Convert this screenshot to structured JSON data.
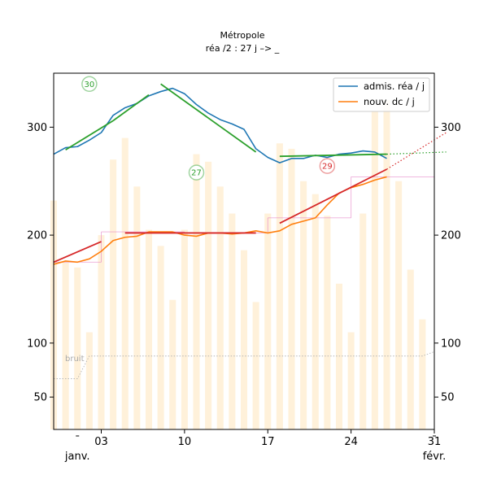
{
  "chart_data": {
    "type": "line",
    "title": "Métropole",
    "subtitle": "réa /2 : 27 j –> _",
    "x_start": "2020-12-30",
    "x_end": "2021-01-31",
    "y_range": [
      20,
      350
    ],
    "y_ticks": [
      50,
      100,
      200,
      300
    ],
    "y_ticks_right": true,
    "x_tick_labels": [
      {
        "date": "2021-01-03",
        "label": "03"
      },
      {
        "date": "2021-01-10",
        "label": "10"
      },
      {
        "date": "2021-01-17",
        "label": "17"
      },
      {
        "date": "2021-01-24",
        "label": "24"
      },
      {
        "date": "2021-01-31",
        "label": "31"
      }
    ],
    "x_minor_ticks": [
      "2021-01-01",
      "2021-01-31"
    ],
    "month_labels": [
      {
        "date": "2021-01-01",
        "label": "janv."
      },
      {
        "date": "2021-02-01",
        "label": "févr."
      }
    ],
    "legend_position": "top-right",
    "colors": {
      "admissions": "#1f77b4",
      "deaths": "#ff7f0e",
      "fit_green": "#2ca02c",
      "fit_red": "#d62728",
      "bars": "#fff1da",
      "steps": "#e377c2",
      "noise": "#b4b4b4"
    },
    "series": [
      {
        "name": "admis. réa / j",
        "x": [
          "2020-12-30",
          "2020-12-31",
          "2021-01-01",
          "2021-01-02",
          "2021-01-03",
          "2021-01-04",
          "2021-01-05",
          "2021-01-06",
          "2021-01-07",
          "2021-01-08",
          "2021-01-09",
          "2021-01-10",
          "2021-01-11",
          "2021-01-12",
          "2021-01-13",
          "2021-01-14",
          "2021-01-15",
          "2021-01-16",
          "2021-01-17",
          "2021-01-18",
          "2021-01-19",
          "2021-01-20",
          "2021-01-21",
          "2021-01-22",
          "2021-01-23",
          "2021-01-24",
          "2021-01-25",
          "2021-01-26",
          "2021-01-27"
        ],
        "y": [
          275,
          281,
          282,
          288,
          295,
          311,
          318,
          322,
          329,
          333,
          336,
          331,
          321,
          313,
          307,
          303,
          298,
          280,
          272,
          267,
          271,
          271,
          274,
          272,
          275,
          276,
          278,
          277,
          271
        ]
      },
      {
        "name": "nouv. dc / j",
        "x": [
          "2020-12-30",
          "2020-12-31",
          "2021-01-01",
          "2021-01-02",
          "2021-01-03",
          "2021-01-04",
          "2021-01-05",
          "2021-01-06",
          "2021-01-07",
          "2021-01-08",
          "2021-01-09",
          "2021-01-10",
          "2021-01-11",
          "2021-01-12",
          "2021-01-13",
          "2021-01-14",
          "2021-01-15",
          "2021-01-16",
          "2021-01-17",
          "2021-01-18",
          "2021-01-19",
          "2021-01-20",
          "2021-01-21",
          "2021-01-22",
          "2021-01-23",
          "2021-01-24",
          "2021-01-25",
          "2021-01-26",
          "2021-01-27"
        ],
        "y": [
          173,
          176,
          175,
          178,
          185,
          195,
          198,
          199,
          203,
          203,
          203,
          200,
          199,
          202,
          202,
          201,
          202,
          204,
          202,
          204,
          210,
          213,
          216,
          228,
          239,
          244,
          247,
          251,
          254
        ]
      }
    ],
    "fit_lines": [
      {
        "color": "green",
        "style": "solid",
        "points": [
          [
            "2020-12-31",
            279
          ],
          [
            "2021-01-04",
            306
          ]
        ]
      },
      {
        "color": "green",
        "style": "solid",
        "points": [
          [
            "2021-01-04",
            306
          ],
          [
            "2021-01-07",
            330
          ]
        ]
      },
      {
        "color": "green",
        "style": "solid",
        "points": [
          [
            "2021-01-08",
            340
          ],
          [
            "2021-01-16",
            277
          ]
        ]
      },
      {
        "color": "green",
        "style": "solid",
        "points": [
          [
            "2021-01-18",
            273
          ],
          [
            "2021-01-27",
            275
          ]
        ]
      },
      {
        "color": "green",
        "style": "dotted",
        "points": [
          [
            "2021-01-27",
            275
          ],
          [
            "2021-02-01",
            277
          ]
        ]
      },
      {
        "color": "red",
        "style": "solid",
        "points": [
          [
            "2020-12-30",
            175
          ],
          [
            "2021-01-03",
            194
          ]
        ]
      },
      {
        "color": "red",
        "style": "solid",
        "points": [
          [
            "2021-01-05",
            202
          ],
          [
            "2021-01-16",
            202
          ]
        ]
      },
      {
        "color": "red",
        "style": "solid",
        "points": [
          [
            "2021-01-18",
            211
          ],
          [
            "2021-01-27",
            261
          ]
        ]
      },
      {
        "color": "red",
        "style": "dotted",
        "points": [
          [
            "2021-01-27",
            261
          ],
          [
            "2021-02-01",
            295
          ]
        ]
      }
    ],
    "bubbles": [
      {
        "date": "2021-01-02",
        "y": 340,
        "label": "30",
        "color": "#2ca02c"
      },
      {
        "date": "2021-01-11",
        "y": 258,
        "label": "27",
        "color": "#2ca02c"
      },
      {
        "date": "2021-01-22",
        "y": 264,
        "label": "29",
        "color": "#d62728"
      }
    ],
    "weekly_steps": [
      {
        "from": "2020-12-30",
        "to": "2021-01-03",
        "y": 175
      },
      {
        "from": "2021-01-03",
        "to": "2021-01-10",
        "y": 203
      },
      {
        "from": "2021-01-10",
        "to": "2021-01-17",
        "y": 202
      },
      {
        "from": "2021-01-17",
        "to": "2021-01-24",
        "y": 216
      },
      {
        "from": "2021-01-24",
        "to": "2021-01-31",
        "y": 254
      }
    ],
    "noise_label": "bruit",
    "noise_line": {
      "points": [
        [
          "2020-12-30",
          67
        ],
        [
          "2021-01-01",
          67
        ],
        [
          "2021-01-02",
          88
        ],
        [
          "2021-01-30",
          88
        ],
        [
          "2021-01-31",
          92
        ]
      ]
    },
    "bars": {
      "x": [
        "2020-12-30",
        "2020-12-31",
        "2021-01-01",
        "2021-01-02",
        "2021-01-03",
        "2021-01-04",
        "2021-01-05",
        "2021-01-06",
        "2021-01-07",
        "2021-01-08",
        "2021-01-09",
        "2021-01-10",
        "2021-01-11",
        "2021-01-12",
        "2021-01-13",
        "2021-01-14",
        "2021-01-15",
        "2021-01-16",
        "2021-01-17",
        "2021-01-18",
        "2021-01-19",
        "2021-01-20",
        "2021-01-21",
        "2021-01-22",
        "2021-01-23",
        "2021-01-24",
        "2021-01-25",
        "2021-01-26",
        "2021-01-27",
        "2021-01-28",
        "2021-01-29",
        "2021-01-30"
      ],
      "y": [
        232,
        175,
        170,
        110,
        200,
        270,
        290,
        245,
        205,
        190,
        140,
        205,
        275,
        268,
        245,
        220,
        186,
        138,
        220,
        285,
        280,
        250,
        238,
        218,
        155,
        110,
        220,
        315,
        325,
        250,
        168,
        122
      ]
    }
  }
}
